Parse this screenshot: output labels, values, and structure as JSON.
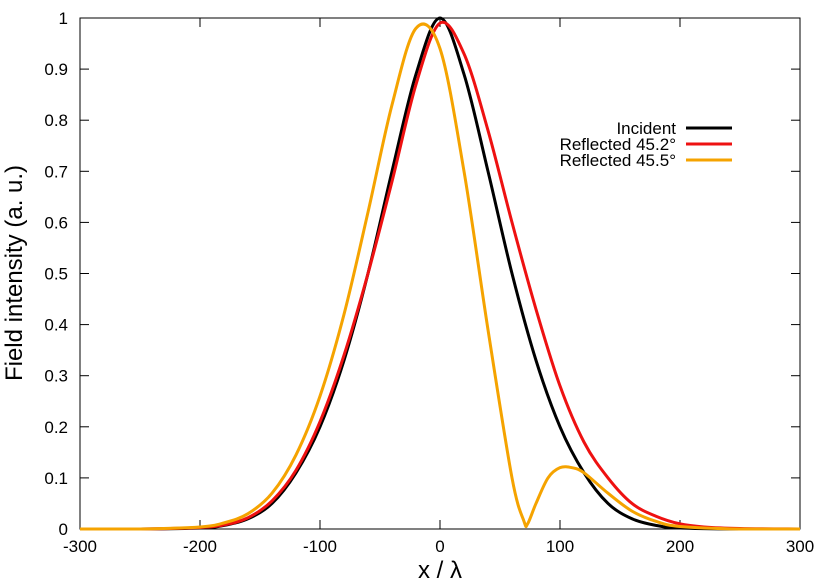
{
  "chart_data": {
    "type": "line",
    "title": "",
    "xlabel": "x / λ",
    "ylabel": "Field intensity (a. u.)",
    "xlim": [
      -300,
      300
    ],
    "ylim": [
      0,
      1
    ],
    "x_ticks": [
      "-300",
      "-200",
      "-100",
      "0",
      "100",
      "200",
      "300"
    ],
    "y_ticks": [
      "0",
      "0.1",
      "0.2",
      "0.3",
      "0.4",
      "0.5",
      "0.6",
      "0.7",
      "0.8",
      "0.9",
      "1"
    ],
    "grid": false,
    "legend_position": "top-right",
    "series": [
      {
        "name": "Incident",
        "color": "#000000",
        "x": [
          -300,
          -250,
          -200,
          -180,
          -160,
          -140,
          -120,
          -100,
          -80,
          -60,
          -40,
          -20,
          0,
          20,
          40,
          60,
          80,
          100,
          120,
          140,
          160,
          180,
          200,
          250,
          300
        ],
        "y": [
          0,
          0,
          0.002,
          0.007,
          0.02,
          0.05,
          0.11,
          0.2,
          0.33,
          0.5,
          0.7,
          0.89,
          1.0,
          0.89,
          0.7,
          0.5,
          0.33,
          0.2,
          0.11,
          0.05,
          0.02,
          0.007,
          0.002,
          0,
          0
        ]
      },
      {
        "name": "Reflected 45.2°",
        "color": "#ee1111",
        "x": [
          -300,
          -250,
          -200,
          -180,
          -160,
          -140,
          -120,
          -100,
          -80,
          -60,
          -40,
          -20,
          0,
          20,
          40,
          60,
          80,
          100,
          120,
          140,
          160,
          180,
          200,
          220,
          250,
          300
        ],
        "y": [
          0,
          0,
          0.003,
          0.008,
          0.022,
          0.055,
          0.115,
          0.21,
          0.34,
          0.5,
          0.68,
          0.87,
          0.99,
          0.93,
          0.78,
          0.6,
          0.43,
          0.28,
          0.17,
          0.1,
          0.05,
          0.025,
          0.01,
          0.004,
          0.001,
          0
        ]
      },
      {
        "name": "Reflected 45.5°",
        "color": "#f5a300",
        "x": [
          -300,
          -250,
          -200,
          -180,
          -160,
          -140,
          -120,
          -100,
          -80,
          -60,
          -40,
          -20,
          0,
          20,
          40,
          60,
          70,
          73,
          80,
          90,
          100,
          110,
          120,
          140,
          160,
          180,
          200,
          250,
          300
        ],
        "y": [
          0,
          0,
          0.004,
          0.012,
          0.03,
          0.07,
          0.145,
          0.26,
          0.42,
          0.62,
          0.83,
          0.98,
          0.94,
          0.7,
          0.39,
          0.1,
          0.015,
          0.01,
          0.05,
          0.1,
          0.12,
          0.12,
          0.11,
          0.07,
          0.035,
          0.015,
          0.005,
          0,
          0
        ]
      }
    ]
  }
}
